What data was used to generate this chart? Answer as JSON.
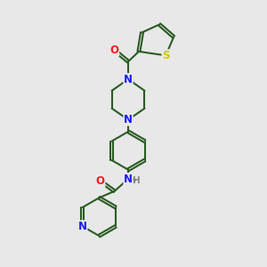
{
  "background_color": "#e8e8e8",
  "bond_color": "#2a5c23",
  "bond_width": 1.5,
  "dbo": 0.055,
  "atom_colors": {
    "N": "#1a1aff",
    "O": "#ff1a1a",
    "S": "#cccc00",
    "H": "#888888",
    "C": "#2a5c23"
  },
  "font_size": 8.5,
  "fig_width": 3.0,
  "fig_height": 3.0,
  "dpi": 100,
  "xlim": [
    0,
    10
  ],
  "ylim": [
    0,
    10
  ]
}
